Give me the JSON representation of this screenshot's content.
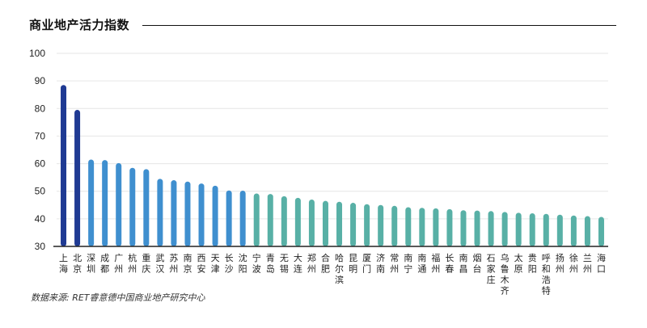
{
  "chart_data": {
    "type": "bar",
    "title": "商业地产活力指数",
    "source": "数据来源: RET睿意德中国商业地产研究中心",
    "ylim": [
      30,
      100
    ],
    "yticks": [
      30,
      40,
      50,
      60,
      70,
      80,
      90,
      100
    ],
    "grid": true,
    "categories": [
      "上海",
      "北京",
      "深圳",
      "成都",
      "广州",
      "杭州",
      "重庆",
      "武汉",
      "苏州",
      "南京",
      "西安",
      "天津",
      "长沙",
      "沈阳",
      "宁波",
      "青岛",
      "无锡",
      "大连",
      "郑州",
      "合肥",
      "哈尔滨",
      "昆明",
      "厦门",
      "济南",
      "常州",
      "南宁",
      "南通",
      "福州",
      "长春",
      "南昌",
      "烟台",
      "石家庄",
      "乌鲁木齐",
      "太原",
      "贵阳",
      "呼和浩特",
      "扬州",
      "徐州",
      "兰州",
      "海口"
    ],
    "values": [
      88.5,
      79.5,
      61.5,
      61.3,
      60.2,
      58.5,
      58.0,
      54.5,
      54.0,
      53.5,
      52.8,
      52.0,
      50.3,
      50.2,
      49.2,
      49.0,
      48.2,
      47.6,
      47.0,
      46.5,
      46.2,
      45.8,
      45.3,
      45.0,
      44.7,
      44.2,
      44.0,
      43.8,
      43.5,
      43.1,
      43.0,
      42.8,
      42.5,
      42.2,
      42.0,
      41.8,
      41.5,
      41.2,
      41.0,
      40.7
    ],
    "colors": {
      "tier1": "#1f3a93",
      "tier2": "#3f8fcf",
      "tier3": "#58b0a6",
      "grid": "#e6e6e6",
      "axis": "#222222"
    },
    "color_groups": [
      {
        "from": 0,
        "to": 1,
        "color_key": "tier1"
      },
      {
        "from": 2,
        "to": 13,
        "color_key": "tier2"
      },
      {
        "from": 14,
        "to": 39,
        "color_key": "tier3"
      }
    ]
  }
}
